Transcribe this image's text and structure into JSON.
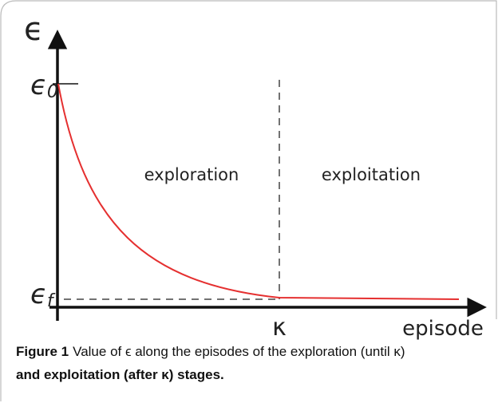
{
  "figure": {
    "y_axis": {
      "symbol": "ϵ"
    },
    "y_ticks": [
      {
        "symbol": "ϵ",
        "subscript": "0"
      },
      {
        "symbol": "ϵ",
        "subscript": "f"
      }
    ],
    "x_tick": "κ",
    "x_axis": "episode",
    "regions": [
      "exploration",
      "exploitation"
    ]
  },
  "caption": {
    "label": "Figure 1",
    "lines": [
      "Value of ϵ along the episodes of the exploration (until κ)",
      "and exploitation (after κ) stages."
    ]
  }
}
